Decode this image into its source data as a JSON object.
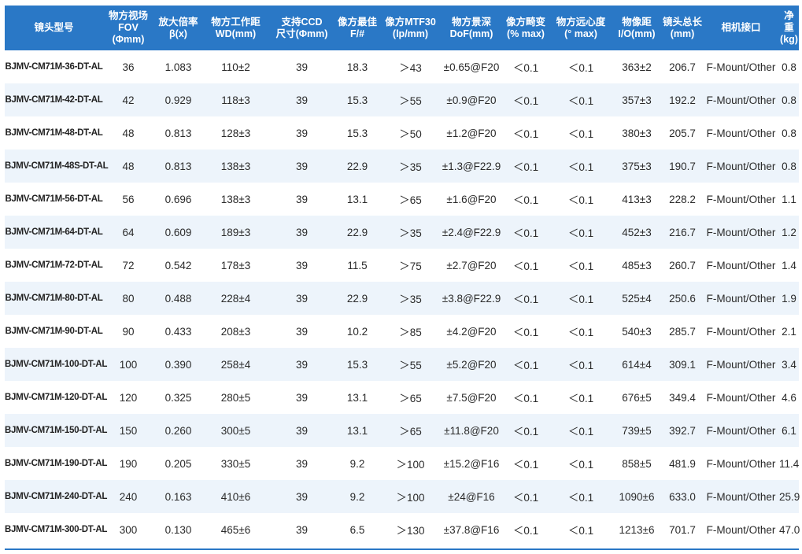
{
  "colors": {
    "header_bg": "#2a78c6",
    "header_text": "#ffffff",
    "stripe": "#edf4fb"
  },
  "headers": [
    [
      "镜头型号"
    ],
    [
      "物方视场",
      "FOV",
      "(Φmm)"
    ],
    [
      "放大倍率",
      "β(x)"
    ],
    [
      "物方工作距",
      "WD(mm)"
    ],
    [
      "支持CCD",
      "尺寸(Φmm)"
    ],
    [
      "像方最佳",
      "F/#"
    ],
    [
      "像方MTF30",
      "(lp/mm)"
    ],
    [
      "物方景深",
      "DoF(mm)"
    ],
    [
      "像方畸变",
      "(% max)"
    ],
    [
      "物方远心度",
      "(° max)"
    ],
    [
      "物像距",
      "I/O(mm)"
    ],
    [
      "镜头总长",
      "(mm)"
    ],
    [
      "相机接口"
    ],
    [
      "净重",
      "(kg)"
    ]
  ],
  "rows": [
    [
      "BJMV-CM71M-36-DT-AL",
      "36",
      "1.083",
      "110±2",
      "39",
      "18.3",
      "＞43",
      "±0.65@F20",
      "＜0.1",
      "＜0.1",
      "363±2",
      "206.7",
      "F-Mount/Other",
      "0.8"
    ],
    [
      "BJMV-CM71M-42-DT-AL",
      "42",
      "0.929",
      "118±3",
      "39",
      "15.3",
      "＞55",
      "±0.9@F20",
      "＜0.1",
      "＜0.1",
      "357±3",
      "192.2",
      "F-Mount/Other",
      "0.8"
    ],
    [
      "BJMV-CM71M-48-DT-AL",
      "48",
      "0.813",
      "128±3",
      "39",
      "15.3",
      "＞50",
      "±1.2@F20",
      "＜0.1",
      "＜0.1",
      "380±3",
      "205.7",
      "F-Mount/Other",
      "0.8"
    ],
    [
      "BJMV-CM71M-48S-DT-AL",
      "48",
      "0.813",
      "138±3",
      "39",
      "22.9",
      "＞35",
      "±1.3@F22.9",
      "＜0.1",
      "＜0.1",
      "375±3",
      "190.7",
      "F-Mount/Other",
      "0.8"
    ],
    [
      "BJMV-CM71M-56-DT-AL",
      "56",
      "0.696",
      "138±3",
      "39",
      "13.1",
      "＞65",
      "±1.6@F20",
      "＜0.1",
      "＜0.1",
      "413±3",
      "228.2",
      "F-Mount/Other",
      "1.1"
    ],
    [
      "BJMV-CM71M-64-DT-AL",
      "64",
      "0.609",
      "189±3",
      "39",
      "22.9",
      "＞35",
      "±2.4@F22.9",
      "＜0.1",
      "＜0.1",
      "452±3",
      "216.7",
      "F-Mount/Other",
      "1.2"
    ],
    [
      "BJMV-CM71M-72-DT-AL",
      "72",
      "0.542",
      "178±3",
      "39",
      "11.5",
      "＞75",
      "±2.7@F20",
      "＜0.1",
      "＜0.1",
      "485±3",
      "260.7",
      "F-Mount/Other",
      "1.4"
    ],
    [
      "BJMV-CM71M-80-DT-AL",
      "80",
      "0.488",
      "228±4",
      "39",
      "22.9",
      "＞35",
      "±3.8@F22.9",
      "＜0.1",
      "＜0.1",
      "525±4",
      "250.6",
      "F-Mount/Other",
      "1.9"
    ],
    [
      "BJMV-CM71M-90-DT-AL",
      "90",
      "0.433",
      "208±3",
      "39",
      "10.2",
      "＞85",
      "±4.2@F20",
      "＜0.1",
      "＜0.1",
      "540±3",
      "285.7",
      "F-Mount/Other",
      "2.1"
    ],
    [
      "BJMV-CM71M-100-DT-AL",
      "100",
      "0.390",
      "258±4",
      "39",
      "15.3",
      "＞55",
      "±5.2@F20",
      "＜0.1",
      "＜0.1",
      "614±4",
      "309.1",
      "F-Mount/Other",
      "3.4"
    ],
    [
      "BJMV-CM71M-120-DT-AL",
      "120",
      "0.325",
      "280±5",
      "39",
      "13.1",
      "＞65",
      "±7.5@F20",
      "＜0.1",
      "＜0.1",
      "676±5",
      "349.4",
      "F-Mount/Other",
      "4.6"
    ],
    [
      "BJMV-CM71M-150-DT-AL",
      "150",
      "0.260",
      "300±5",
      "39",
      "13.1",
      "＞65",
      "±11.8@F20",
      "＜0.1",
      "＜0.1",
      "739±5",
      "392.7",
      "F-Mount/Other",
      "6.1"
    ],
    [
      "BJMV-CM71M-190-DT-AL",
      "190",
      "0.205",
      "330±5",
      "39",
      "9.2",
      "＞100",
      "±15.2@F16",
      "＜0.1",
      "＜0.1",
      "858±5",
      "481.9",
      "F-Mount/Other",
      "11.4"
    ],
    [
      "BJMV-CM71M-240-DT-AL",
      "240",
      "0.163",
      "410±6",
      "39",
      "9.2",
      "＞100",
      "±24@F16",
      "＜0.1",
      "＜0.1",
      "1090±6",
      "633.0",
      "F-Mount/Other",
      "25.9"
    ],
    [
      "BJMV-CM71M-300-DT-AL",
      "300",
      "0.130",
      "465±6",
      "39",
      "6.5",
      "＞130",
      "±37.8@F16",
      "＜0.1",
      "＜0.1",
      "1213±6",
      "701.7",
      "F-Mount/Other",
      "47.0"
    ]
  ]
}
